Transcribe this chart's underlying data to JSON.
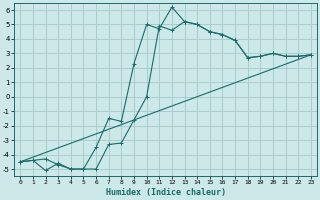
{
  "xlabel": "Humidex (Indice chaleur)",
  "background_color": "#cce8e8",
  "grid_color": "#aacccc",
  "line_color": "#1a6b6b",
  "xlim": [
    -0.5,
    23.5
  ],
  "ylim": [
    -5.5,
    6.5
  ],
  "xticks": [
    0,
    1,
    2,
    3,
    4,
    5,
    6,
    7,
    8,
    9,
    10,
    11,
    12,
    13,
    14,
    15,
    16,
    17,
    18,
    19,
    20,
    21,
    22,
    23
  ],
  "yticks": [
    -5,
    -4,
    -3,
    -2,
    -1,
    0,
    1,
    2,
    3,
    4,
    5,
    6
  ],
  "line1_x": [
    0,
    1,
    2,
    3,
    4,
    5,
    6,
    7,
    8,
    9,
    10,
    11,
    12,
    13,
    14,
    15,
    16,
    17,
    18,
    19,
    20,
    21,
    22,
    23
  ],
  "line1_y": [
    -4.5,
    -4.4,
    -5.1,
    -4.6,
    -5.0,
    -5.0,
    -3.5,
    -1.5,
    -1.7,
    2.3,
    5.0,
    4.7,
    6.2,
    5.2,
    5.0,
    4.5,
    4.3,
    3.9,
    2.7,
    2.8,
    3.0,
    2.8,
    2.8,
    2.9
  ],
  "line2_x": [
    0,
    1,
    2,
    3,
    4,
    5,
    6,
    7,
    8,
    9,
    10,
    11,
    12,
    13,
    14,
    15,
    16,
    17,
    18,
    19,
    20,
    21,
    22,
    23
  ],
  "line2_y": [
    -4.5,
    -4.4,
    -4.3,
    -4.7,
    -5.0,
    -5.0,
    -5.0,
    -3.3,
    -3.2,
    -1.6,
    0.0,
    4.9,
    4.6,
    5.2,
    5.0,
    4.5,
    4.3,
    3.9,
    2.7,
    2.8,
    3.0,
    2.8,
    2.8,
    2.9
  ],
  "line3_x": [
    0,
    23
  ],
  "line3_y": [
    -4.5,
    2.9
  ]
}
